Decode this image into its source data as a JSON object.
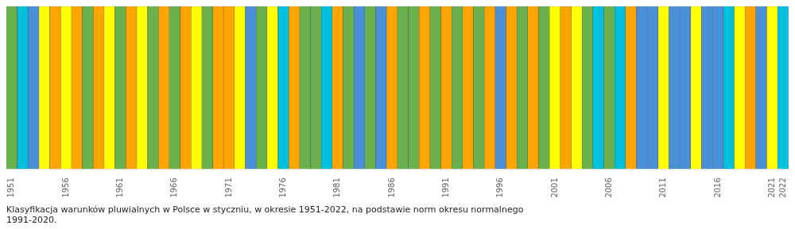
{
  "chart_data": {
    "type": "bar",
    "title": "Klasyfikacja warunków pluwialnych w Polsce w styczniu, w okresie 1951-2022, na podstawie norm okresu normalnego\n1991-2020.",
    "categories": [
      "1951",
      null,
      null,
      null,
      null,
      "1956",
      null,
      null,
      null,
      null,
      "1961",
      null,
      null,
      null,
      null,
      "1966",
      null,
      null,
      null,
      null,
      "1971",
      null,
      null,
      null,
      null,
      "1976",
      null,
      null,
      null,
      null,
      "1981",
      null,
      null,
      null,
      null,
      "1986",
      null,
      null,
      null,
      null,
      "1991",
      null,
      null,
      null,
      null,
      "1996",
      null,
      null,
      null,
      null,
      "2001",
      null,
      null,
      null,
      null,
      "2006",
      null,
      null,
      null,
      null,
      "2011",
      null,
      null,
      null,
      null,
      "2016",
      null,
      null,
      null,
      null,
      "2021",
      "2022"
    ],
    "values": [
      1,
      1,
      1,
      1,
      1,
      1,
      1,
      1,
      1,
      1,
      1,
      1,
      1,
      1,
      1,
      1,
      1,
      1,
      1,
      1,
      1,
      1,
      1,
      1,
      1,
      1,
      1,
      1,
      1,
      1,
      1,
      1,
      1,
      1,
      1,
      1,
      1,
      1,
      1,
      1,
      1,
      1,
      1,
      1,
      1,
      1,
      1,
      1,
      1,
      1,
      1,
      1,
      1,
      1,
      1,
      1,
      1,
      1,
      1,
      1,
      1,
      1,
      1,
      1,
      1,
      1,
      1,
      1,
      1,
      1,
      1,
      1
    ],
    "colors": [
      "#6ab04c",
      "#00c0e0",
      "#4a90d9",
      "#ffff00",
      "#ffa500",
      "#ffff00",
      "#ffa500",
      "#6ab04c",
      "#ffa500",
      "#ffff00",
      "#6ab04c",
      "#ffa500",
      "#ffff00",
      "#6ab04c",
      "#ffa500",
      "#6ab04c",
      "#ffa500",
      "#ffff00",
      "#6ab04c",
      "#ffa500",
      "#ffa500",
      "#ffff00",
      "#4a90d9",
      "#6ab04c",
      "#ffff00",
      "#00c0e0",
      "#ffa500",
      "#6ab04c",
      "#6ab04c",
      "#00c0e0",
      "#ffa500",
      "#6ab04c",
      "#4a90d9",
      "#6ab04c",
      "#4a90d9",
      "#ffa500",
      "#6ab04c",
      "#6ab04c",
      "#ffa500",
      "#6ab04c",
      "#ffa500",
      "#6ab04c",
      "#ffa500",
      "#6ab04c",
      "#ffa500",
      "#4a90d9",
      "#ffa500",
      "#6ab04c",
      "#ffa500",
      "#6ab04c",
      "#ffff00",
      "#ffa500",
      "#ffff00",
      "#6ab04c",
      "#00c0e0",
      "#6ab04c",
      "#00c0e0",
      "#ffa500",
      "#4a90d9",
      "#4a90d9",
      "#ffff00",
      "#4a90d9",
      "#4a90d9",
      "#ffff00",
      "#4a90d9",
      "#4a90d9",
      "#00c0e0",
      "#ffff00",
      "#ffa500",
      "#4a90d9",
      "#ffff00",
      "#00c0e0"
    ],
    "ylim": [
      0,
      1
    ],
    "tick_labels": "x",
    "grid": false
  }
}
